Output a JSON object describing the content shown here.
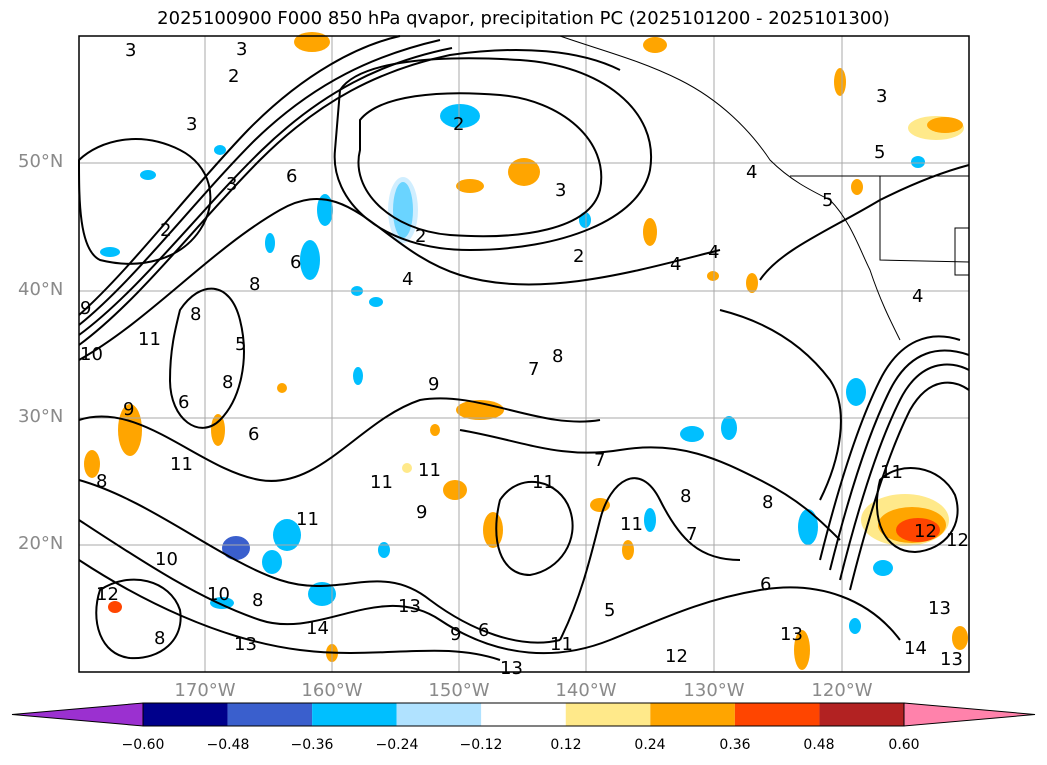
{
  "title": "2025100900 F000 850 hPa qvapor, precipitation PC (2025101200 - 2025101300)",
  "lat_labels": [
    "50°N",
    "40°N",
    "30°N",
    "20°N"
  ],
  "lon_labels": [
    "170°W",
    "160°W",
    "150°W",
    "140°W",
    "130°W",
    "120°W"
  ],
  "colorbar": {
    "ticks": [
      "−0.60",
      "−0.48",
      "−0.36",
      "−0.24",
      "−0.12",
      "0.12",
      "0.24",
      "0.36",
      "0.48",
      "0.60"
    ],
    "colors": [
      "#9b30d0",
      "#00008b",
      "#3a5fcd",
      "#00bfff",
      "#b0e2ff",
      "#ffffff",
      "#ffe98a",
      "#ffa500",
      "#ff4500",
      "#b22222",
      "#ff82ab",
      "#ff82ab"
    ]
  },
  "contour_labels": [
    "3",
    "3",
    "2",
    "3",
    "3",
    "2",
    "6",
    "2",
    "3",
    "2",
    "4",
    "4",
    "3",
    "4",
    "5",
    "4",
    "5",
    "4",
    "2",
    "6",
    "8",
    "8",
    "5",
    "8",
    "6",
    "9",
    "9",
    "11",
    "10",
    "9",
    "8",
    "11",
    "6",
    "9",
    "11",
    "7",
    "7",
    "8",
    "8",
    "11",
    "11",
    "11",
    "11",
    "12",
    "10",
    "8",
    "8",
    "10",
    "14",
    "13",
    "13",
    "12",
    "13",
    "9",
    "5",
    "6",
    "11",
    "12",
    "13",
    "14",
    "13",
    "8",
    "7",
    "6",
    "11",
    "12",
    "13"
  ]
}
